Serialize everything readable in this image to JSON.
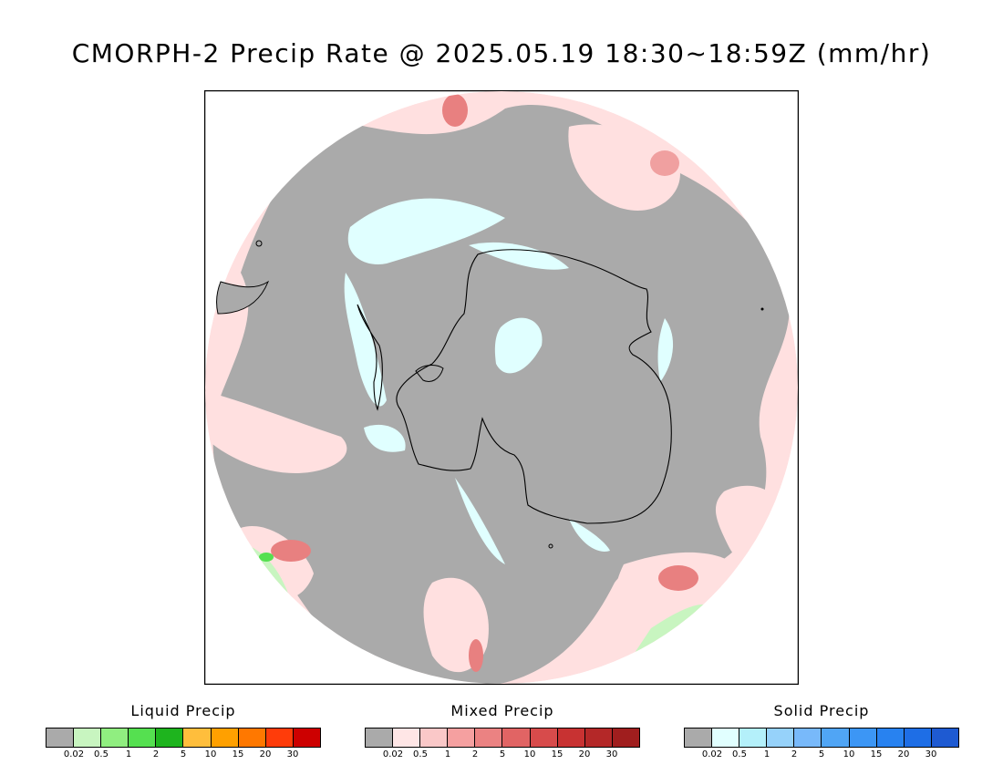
{
  "title": "CMORPH-2 Precip Rate @ 2025.05.19 18:30~18:59Z (mm/hr)",
  "map": {
    "projection": "south-polar-stereographic",
    "background_color": "#aaaaaa",
    "coastline_color": "#000000"
  },
  "legends": [
    {
      "id": "liquid",
      "title": "Liquid Precip",
      "colors": [
        "#aaaaaa",
        "#c8f5c0",
        "#90ee80",
        "#55e050",
        "#1eb41e",
        "#ffbe3c",
        "#ffa000",
        "#ff7800",
        "#ff3c0a",
        "#cd0000"
      ],
      "ticks": [
        "0.02",
        "0.5",
        "1",
        "2",
        "5",
        "10",
        "15",
        "20",
        "30"
      ]
    },
    {
      "id": "mixed",
      "title": "Mixed Precip",
      "colors": [
        "#aaaaaa",
        "#ffe6e6",
        "#fac8c8",
        "#f5a0a0",
        "#eb8282",
        "#e16464",
        "#d74b4b",
        "#c83232",
        "#b42828",
        "#a01e1e"
      ],
      "ticks": [
        "0.02",
        "0.5",
        "1",
        "2",
        "5",
        "10",
        "15",
        "20",
        "30"
      ]
    },
    {
      "id": "solid",
      "title": "Solid Precip",
      "colors": [
        "#aaaaaa",
        "#e1ffff",
        "#b4f0fa",
        "#96d2fa",
        "#78b9fa",
        "#50a5f5",
        "#3c96f5",
        "#2882f0",
        "#1e6ee6",
        "#1e5ad2"
      ],
      "ticks": [
        "0.02",
        "0.5",
        "1",
        "2",
        "5",
        "10",
        "15",
        "20",
        "30"
      ]
    }
  ]
}
